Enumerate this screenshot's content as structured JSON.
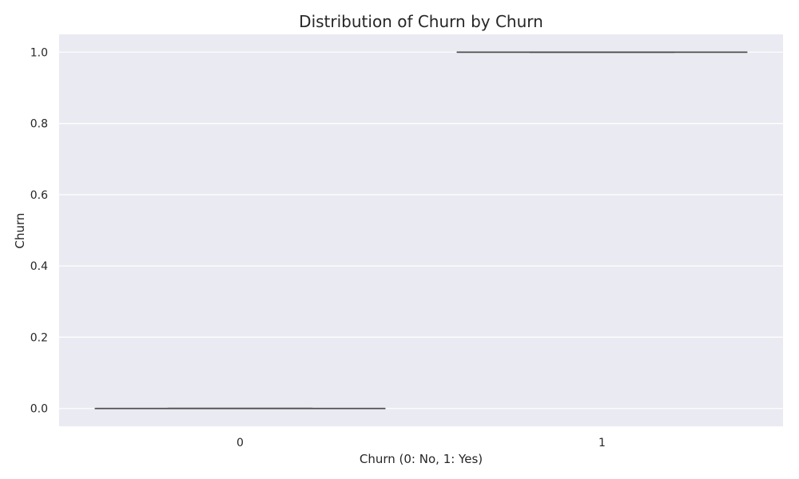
{
  "chart_data": {
    "type": "box",
    "title": "Distribution of Churn by Churn",
    "xlabel": "Churn (0: No, 1: Yes)",
    "ylabel": "Churn",
    "categories": [
      "0",
      "1"
    ],
    "boxes": [
      {
        "category": "0",
        "min": 0,
        "q1": 0,
        "median": 0,
        "q3": 0,
        "max": 0
      },
      {
        "category": "1",
        "min": 1,
        "q1": 1,
        "median": 1,
        "q3": 1,
        "max": 1
      }
    ],
    "ylim": [
      -0.05,
      1.05
    ],
    "yticks": [
      "0.0",
      "0.2",
      "0.4",
      "0.6",
      "0.8",
      "1.0"
    ],
    "grid": true,
    "colors": {
      "plot_background": "#eaeaf2",
      "grid": "#ffffff",
      "box_line": "#4d4d4d"
    }
  }
}
